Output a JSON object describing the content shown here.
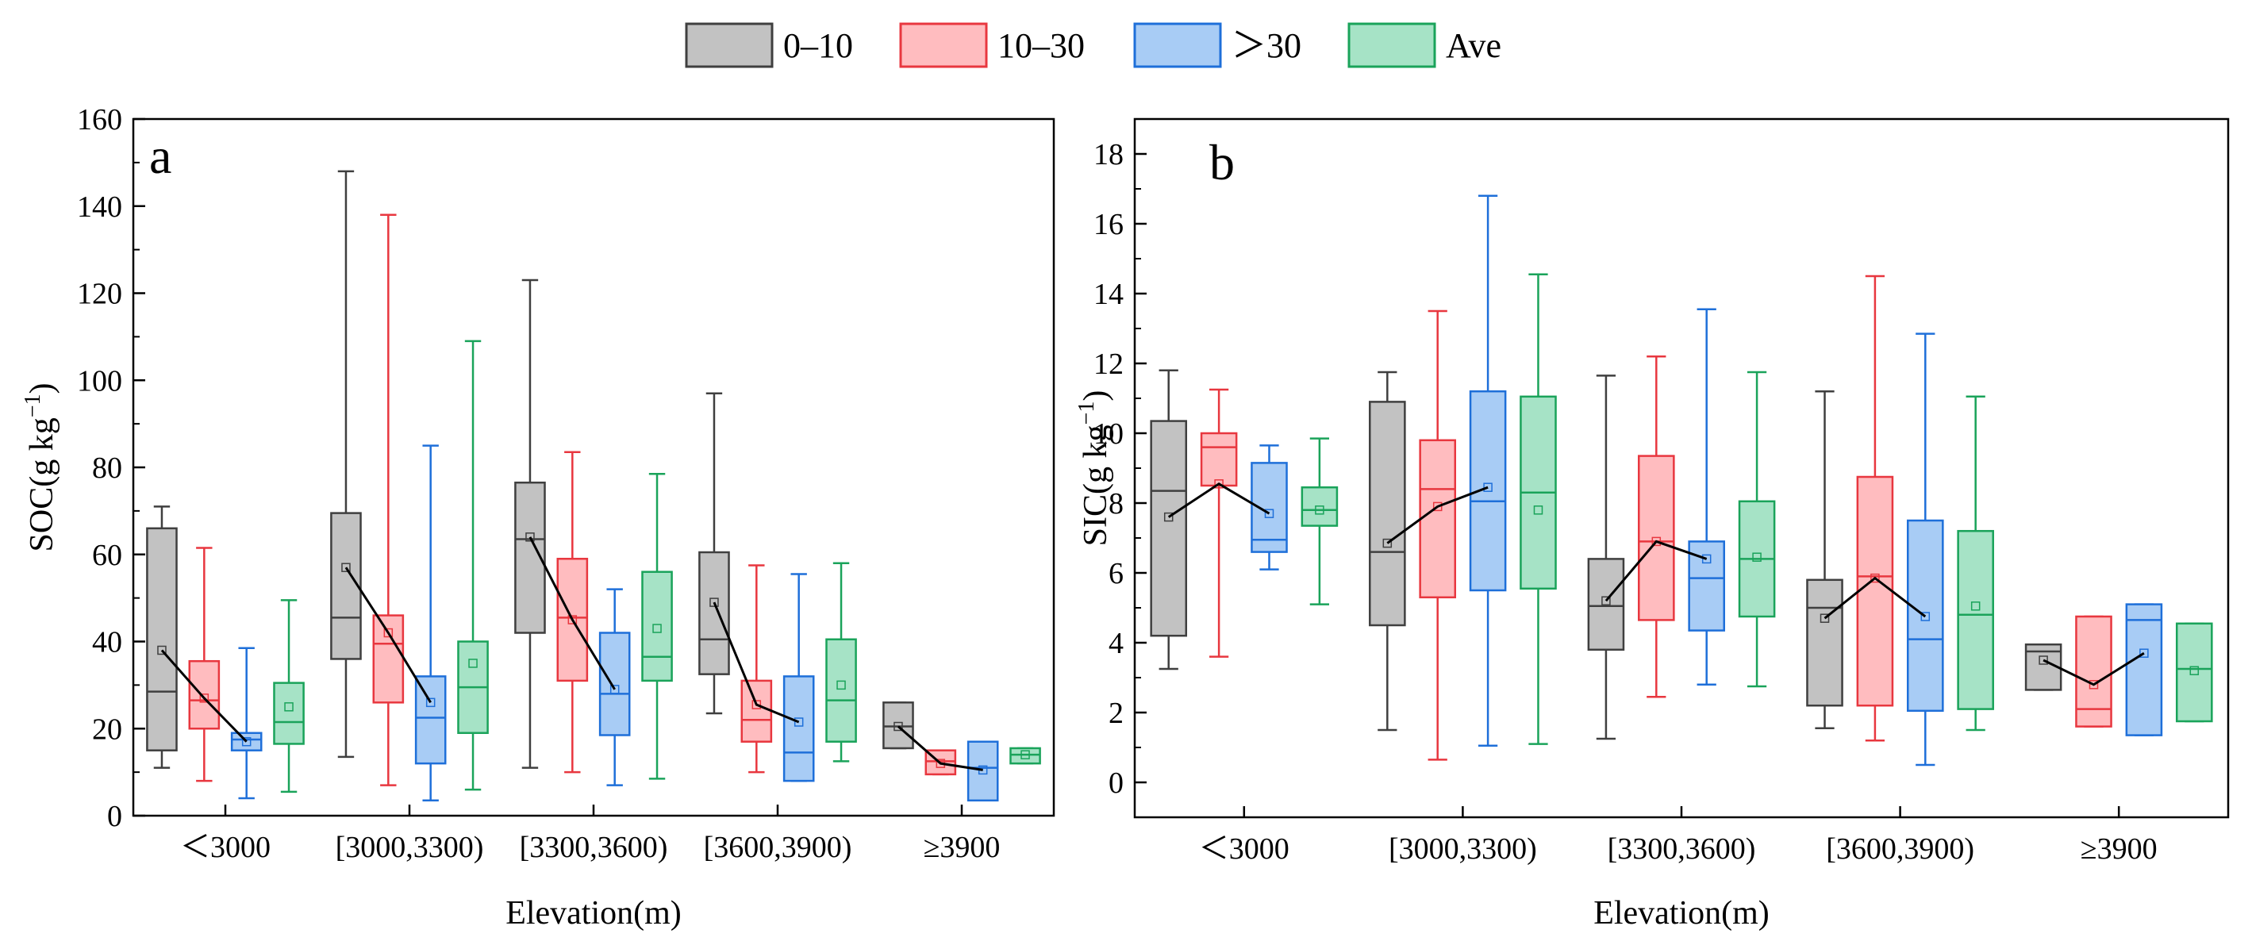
{
  "legend": [
    {
      "label": "0–10",
      "stroke": "#3f3f3f",
      "fill": "#c2c2c2"
    },
    {
      "label": "10–30",
      "stroke": "#e8373f",
      "fill": "#ffbcbf"
    },
    {
      "label": "＞30",
      "stroke": "#1e6fd9",
      "fill": "#a8ccf5"
    },
    {
      "label": "Ave",
      "stroke": "#1aa35a",
      "fill": "#a6e3c6"
    }
  ],
  "chart_data": [
    {
      "type": "box",
      "panel_label": "a",
      "title": "",
      "xlabel": "Elevation(m)",
      "ylabel_main": "SOC(g kg",
      "ylabel_sup": "−1",
      "ylabel_end": ")",
      "ylim": [
        0,
        160
      ],
      "yticks": [
        0,
        20,
        40,
        60,
        80,
        100,
        120,
        140,
        160
      ],
      "minor_step": 10,
      "categories": [
        "＜3000",
        "[3000,3300)",
        "[3300,3600)",
        "[3600,3900)",
        "≥3900"
      ],
      "series": [
        {
          "name": "0–10",
          "boxes": [
            {
              "min": 11,
              "q1": 15,
              "median": 28.5,
              "q3": 66,
              "max": 71,
              "mean": 38
            },
            {
              "min": 13.5,
              "q1": 36,
              "median": 45.5,
              "q3": 69.5,
              "max": 148,
              "mean": 57
            },
            {
              "min": 11,
              "q1": 42,
              "median": 63.5,
              "q3": 76.5,
              "max": 123,
              "mean": 64
            },
            {
              "min": 23.5,
              "q1": 32.5,
              "median": 40.5,
              "q3": 60.5,
              "max": 97,
              "mean": 49
            },
            {
              "min": 15.5,
              "q1": 15.5,
              "median": 20.5,
              "q3": 26,
              "max": 26,
              "mean": 20.5
            }
          ]
        },
        {
          "name": "10–30",
          "boxes": [
            {
              "min": 8,
              "q1": 20,
              "median": 26.5,
              "q3": 35.5,
              "max": 61.5,
              "mean": 27
            },
            {
              "min": 7,
              "q1": 26,
              "median": 39.5,
              "q3": 46,
              "max": 138,
              "mean": 42
            },
            {
              "min": 10,
              "q1": 31,
              "median": 45.5,
              "q3": 59,
              "max": 83.5,
              "mean": 45
            },
            {
              "min": 10,
              "q1": 17,
              "median": 22,
              "q3": 31,
              "max": 57.5,
              "mean": 25.5
            },
            {
              "min": 9.5,
              "q1": 9.5,
              "median": 12.5,
              "q3": 15,
              "max": 15,
              "mean": 12
            }
          ]
        },
        {
          "name": "＞30",
          "boxes": [
            {
              "min": 4,
              "q1": 15,
              "median": 17.5,
              "q3": 19,
              "max": 38.5,
              "mean": 17
            },
            {
              "min": 3.5,
              "q1": 12,
              "median": 22.5,
              "q3": 32,
              "max": 85,
              "mean": 26
            },
            {
              "min": 7,
              "q1": 18.5,
              "median": 28,
              "q3": 42,
              "max": 52,
              "mean": 29
            },
            {
              "min": 8,
              "q1": 8,
              "median": 14.5,
              "q3": 32,
              "max": 55.5,
              "mean": 21.5
            },
            {
              "min": 3.5,
              "q1": 3.5,
              "median": 11,
              "q3": 17,
              "max": 17,
              "mean": 10.5
            }
          ]
        },
        {
          "name": "Ave",
          "boxes": [
            {
              "min": 5.5,
              "q1": 16.5,
              "median": 21.5,
              "q3": 30.5,
              "max": 49.5,
              "mean": 25
            },
            {
              "min": 6,
              "q1": 19,
              "median": 29.5,
              "q3": 40,
              "max": 109,
              "mean": 35
            },
            {
              "min": 8.5,
              "q1": 31,
              "median": 36.5,
              "q3": 56,
              "max": 78.5,
              "mean": 43
            },
            {
              "min": 12.5,
              "q1": 17,
              "median": 26.5,
              "q3": 40.5,
              "max": 58,
              "mean": 30
            },
            {
              "min": 12,
              "q1": 12,
              "median": 14,
              "q3": 15.5,
              "max": 15.5,
              "mean": 14
            }
          ]
        }
      ]
    },
    {
      "type": "box",
      "panel_label": "b",
      "title": "",
      "xlabel": "Elevation(m)",
      "ylabel_main": "SIC(g kg",
      "ylabel_sup": "−1",
      "ylabel_end": ")",
      "ylim": [
        -1,
        19
      ],
      "yticks": [
        0,
        2,
        4,
        6,
        8,
        10,
        12,
        14,
        16,
        18
      ],
      "minor_step": 1,
      "categories": [
        "＜3000",
        "[3000,3300)",
        "[3300,3600)",
        "[3600,3900)",
        "≥3900"
      ],
      "series": [
        {
          "name": "0–10",
          "boxes": [
            {
              "min": 3.25,
              "q1": 4.2,
              "median": 8.35,
              "q3": 10.35,
              "max": 11.8,
              "mean": 7.6
            },
            {
              "min": 1.5,
              "q1": 4.5,
              "median": 6.6,
              "q3": 10.9,
              "max": 11.75,
              "mean": 6.85
            },
            {
              "min": 1.25,
              "q1": 3.8,
              "median": 5.05,
              "q3": 6.4,
              "max": 11.65,
              "mean": 5.2
            },
            {
              "min": 1.55,
              "q1": 2.2,
              "median": 5.0,
              "q3": 5.8,
              "max": 11.2,
              "mean": 4.7
            },
            {
              "min": 2.65,
              "q1": 2.65,
              "median": 3.75,
              "q3": 3.95,
              "max": 3.95,
              "mean": 3.5
            }
          ]
        },
        {
          "name": "10–30",
          "boxes": [
            {
              "min": 3.6,
              "q1": 8.5,
              "median": 9.6,
              "q3": 10.0,
              "max": 11.25,
              "mean": 8.55
            },
            {
              "min": 0.65,
              "q1": 5.3,
              "median": 8.4,
              "q3": 9.8,
              "max": 13.5,
              "mean": 7.9
            },
            {
              "min": 2.45,
              "q1": 4.65,
              "median": 6.9,
              "q3": 9.35,
              "max": 12.2,
              "mean": 6.9
            },
            {
              "min": 1.2,
              "q1": 2.2,
              "median": 5.9,
              "q3": 8.75,
              "max": 14.5,
              "mean": 5.85
            },
            {
              "min": 1.6,
              "q1": 1.6,
              "median": 2.1,
              "q3": 4.75,
              "max": 4.75,
              "mean": 2.8
            }
          ]
        },
        {
          "name": "＞30",
          "boxes": [
            {
              "min": 6.1,
              "q1": 6.6,
              "median": 6.95,
              "q3": 9.15,
              "max": 9.65,
              "mean": 7.7
            },
            {
              "min": 1.05,
              "q1": 5.5,
              "median": 8.05,
              "q3": 11.2,
              "max": 16.8,
              "mean": 8.45
            },
            {
              "min": 2.8,
              "q1": 4.35,
              "median": 5.85,
              "q3": 6.9,
              "max": 13.55,
              "mean": 6.4
            },
            {
              "min": 0.5,
              "q1": 2.05,
              "median": 4.1,
              "q3": 7.5,
              "max": 12.85,
              "mean": 4.75
            },
            {
              "min": 1.35,
              "q1": 1.35,
              "median": 4.65,
              "q3": 5.1,
              "max": 5.1,
              "mean": 3.7
            }
          ]
        },
        {
          "name": "Ave",
          "boxes": [
            {
              "min": 5.1,
              "q1": 7.35,
              "median": 7.8,
              "q3": 8.45,
              "max": 9.85,
              "mean": 7.8
            },
            {
              "min": 1.1,
              "q1": 5.55,
              "median": 8.3,
              "q3": 11.05,
              "max": 14.55,
              "mean": 7.8
            },
            {
              "min": 2.75,
              "q1": 4.75,
              "median": 6.4,
              "q3": 8.05,
              "max": 11.75,
              "mean": 6.45
            },
            {
              "min": 1.5,
              "q1": 2.1,
              "median": 4.8,
              "q3": 7.2,
              "max": 11.05,
              "mean": 5.05
            },
            {
              "min": 1.75,
              "q1": 1.75,
              "median": 3.25,
              "q3": 4.55,
              "max": 4.55,
              "mean": 3.2
            }
          ]
        }
      ]
    }
  ]
}
